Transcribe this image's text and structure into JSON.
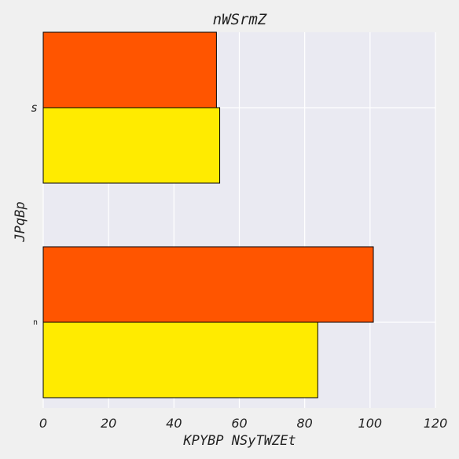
{
  "chart_data": {
    "type": "bar",
    "orientation": "horizontal",
    "title": "nWSrmZ",
    "xlabel": "KPYBP NSyTWZEt",
    "ylabel": "JPqBp",
    "categories": [
      "n",
      "s"
    ],
    "series": [
      {
        "color": "#ffeb00",
        "values": [
          84,
          54
        ]
      },
      {
        "color": "#ff5500",
        "values": [
          101,
          53
        ]
      }
    ],
    "xlim": [
      0,
      120
    ],
    "xticks": [
      0,
      20,
      40,
      60,
      80,
      100,
      120
    ],
    "grid": true,
    "background": "#eaeaf2",
    "figure_background": "#f0f0f0"
  }
}
